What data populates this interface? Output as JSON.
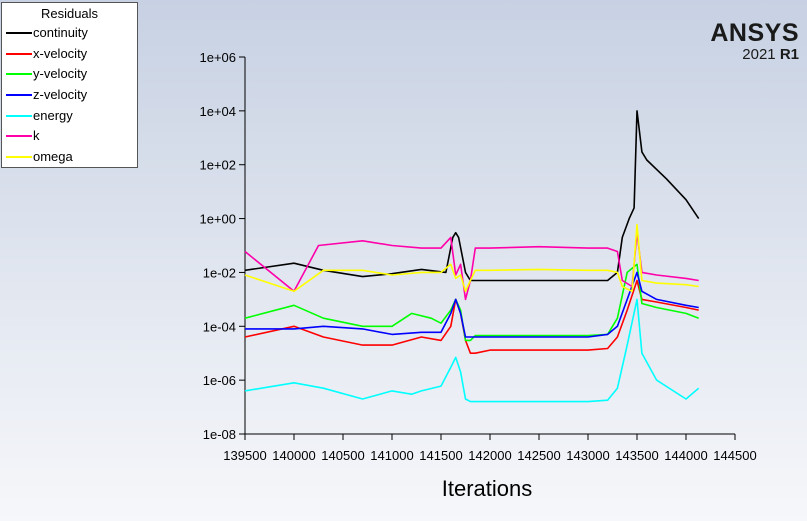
{
  "legend": {
    "title": "Residuals",
    "items": [
      {
        "label": "continuity",
        "color": "#000000"
      },
      {
        "label": "x-velocity",
        "color": "#ff0000"
      },
      {
        "label": "y-velocity",
        "color": "#00ff00"
      },
      {
        "label": "z-velocity",
        "color": "#0000ff"
      },
      {
        "label": "energy",
        "color": "#00ffff"
      },
      {
        "label": "k",
        "color": "#ff00aa"
      },
      {
        "label": "omega",
        "color": "#ffff00"
      }
    ]
  },
  "brand": {
    "name": "ANSYS",
    "version": "2021",
    "release": "R1"
  },
  "chart_data": {
    "type": "line",
    "xlabel": "Iterations",
    "ylabel": "",
    "yscale": "log",
    "xlim": [
      139500,
      144500
    ],
    "ylim": [
      1e-08,
      1000000.0
    ],
    "xticks": [
      139500,
      140000,
      140500,
      141000,
      141500,
      142000,
      142500,
      143000,
      143500,
      144000,
      144500
    ],
    "xtick_labels": [
      "139500",
      "140000",
      "140500",
      "141000",
      "141500",
      "142000",
      "142500",
      "143000",
      "143500",
      "144000",
      "144500"
    ],
    "yticks": [
      1e-08,
      1e-06,
      0.0001,
      0.01,
      1,
      100,
      10000,
      1000000
    ],
    "ytick_labels": [
      "1e-08",
      "1e-06",
      "1e-04",
      "1e-02",
      "1e+00",
      "1e+02",
      "1e+04",
      "1e+06"
    ],
    "grid": false,
    "legend_position": "top-left",
    "series": [
      {
        "name": "continuity",
        "color": "#000000",
        "x": [
          139500,
          140000,
          140300,
          140700,
          141000,
          141300,
          141550,
          141620,
          141650,
          141680,
          141750,
          141800,
          141850,
          142000,
          142500,
          143000,
          143200,
          143300,
          143350,
          143420,
          143470,
          143500,
          143550,
          143600,
          143800,
          144000,
          144130
        ],
        "y": [
          0.012,
          0.022,
          0.012,
          0.007,
          0.009,
          0.013,
          0.01,
          0.2,
          0.3,
          0.2,
          0.01,
          0.005,
          0.005,
          0.005,
          0.005,
          0.005,
          0.005,
          0.01,
          0.2,
          1,
          2.5,
          10000,
          300,
          150,
          30,
          5,
          1
        ]
      },
      {
        "name": "x-velocity",
        "color": "#ff0000",
        "x": [
          139500,
          140000,
          140300,
          140700,
          141000,
          141300,
          141500,
          141600,
          141650,
          141700,
          141750,
          141800,
          141850,
          142000,
          142500,
          143000,
          143200,
          143300,
          143400,
          143500,
          143550,
          143700,
          144000,
          144130
        ],
        "y": [
          4e-05,
          0.0001,
          4e-05,
          2e-05,
          2e-05,
          4e-05,
          3e-05,
          0.0001,
          0.001,
          0.0003,
          3e-05,
          1e-05,
          1e-05,
          1.3e-05,
          1.3e-05,
          1.3e-05,
          1.5e-05,
          4e-05,
          0.0004,
          0.005,
          0.001,
          0.0008,
          0.0005,
          0.0004
        ]
      },
      {
        "name": "y-velocity",
        "color": "#00ff00",
        "x": [
          139500,
          140000,
          140300,
          140700,
          141000,
          141200,
          141400,
          141500,
          141600,
          141650,
          141700,
          141750,
          141800,
          141850,
          142000,
          142500,
          143000,
          143200,
          143300,
          143400,
          143500,
          143550,
          143700,
          144000,
          144130
        ],
        "y": [
          0.0002,
          0.0006,
          0.0002,
          0.0001,
          0.0001,
          0.0003,
          0.0002,
          0.00013,
          0.0004,
          0.001,
          0.0004,
          3e-05,
          3e-05,
          4.5e-05,
          4.5e-05,
          4.5e-05,
          4.5e-05,
          5e-05,
          0.0002,
          0.01,
          0.02,
          0.0007,
          0.0005,
          0.0003,
          0.0002
        ]
      },
      {
        "name": "z-velocity",
        "color": "#0000ff",
        "x": [
          139500,
          140000,
          140300,
          140700,
          141000,
          141300,
          141500,
          141600,
          141650,
          141700,
          141750,
          141800,
          141850,
          142000,
          142500,
          143000,
          143200,
          143300,
          143400,
          143500,
          143550,
          143700,
          144000,
          144130
        ],
        "y": [
          8e-05,
          8e-05,
          0.0001,
          8e-05,
          5e-05,
          6e-05,
          6e-05,
          0.0003,
          0.001,
          0.0003,
          4e-05,
          4e-05,
          4e-05,
          4e-05,
          4e-05,
          4e-05,
          5e-05,
          0.0001,
          0.001,
          0.01,
          0.002,
          0.001,
          0.0006,
          0.0005
        ]
      },
      {
        "name": "energy",
        "color": "#00ffff",
        "x": [
          139500,
          140000,
          140300,
          140700,
          141000,
          141200,
          141300,
          141500,
          141600,
          141650,
          141700,
          141750,
          141800,
          141850,
          142000,
          142500,
          143000,
          143200,
          143300,
          143400,
          143500,
          143550,
          143700,
          144000,
          144130
        ],
        "y": [
          4e-07,
          8e-07,
          5e-07,
          2e-07,
          4e-07,
          3e-07,
          4e-07,
          6e-07,
          3e-06,
          7e-06,
          2e-06,
          2e-07,
          1.6e-07,
          1.6e-07,
          1.6e-07,
          1.6e-07,
          1.6e-07,
          1.8e-07,
          5e-07,
          2e-05,
          0.001,
          1e-05,
          1e-06,
          2e-07,
          5e-07
        ]
      },
      {
        "name": "k",
        "color": "#ff00aa",
        "x": [
          139500,
          140000,
          140250,
          140700,
          141000,
          141300,
          141500,
          141600,
          141650,
          141700,
          141750,
          141800,
          141850,
          142000,
          142500,
          143000,
          143200,
          143300,
          143350,
          143450,
          143500,
          143550,
          143700,
          144000,
          144130
        ],
        "y": [
          0.06,
          0.002,
          0.1,
          0.15,
          0.1,
          0.08,
          0.08,
          0.2,
          0.008,
          0.02,
          0.001,
          0.005,
          0.08,
          0.08,
          0.09,
          0.08,
          0.08,
          0.06,
          0.005,
          0.003,
          0.3,
          0.01,
          0.008,
          0.006,
          0.005
        ]
      },
      {
        "name": "omega",
        "color": "#ffff00",
        "x": [
          139500,
          140000,
          140300,
          140700,
          141000,
          141300,
          141500,
          141600,
          141650,
          141700,
          141750,
          141800,
          141850,
          142000,
          142500,
          143000,
          143200,
          143300,
          143350,
          143450,
          143500,
          143550,
          143700,
          144000,
          144130
        ],
        "y": [
          0.008,
          0.002,
          0.012,
          0.012,
          0.008,
          0.01,
          0.01,
          0.02,
          0.006,
          0.008,
          0.002,
          0.005,
          0.012,
          0.012,
          0.013,
          0.012,
          0.012,
          0.01,
          0.003,
          0.002,
          0.6,
          0.005,
          0.004,
          0.0035,
          0.003
        ]
      }
    ]
  }
}
